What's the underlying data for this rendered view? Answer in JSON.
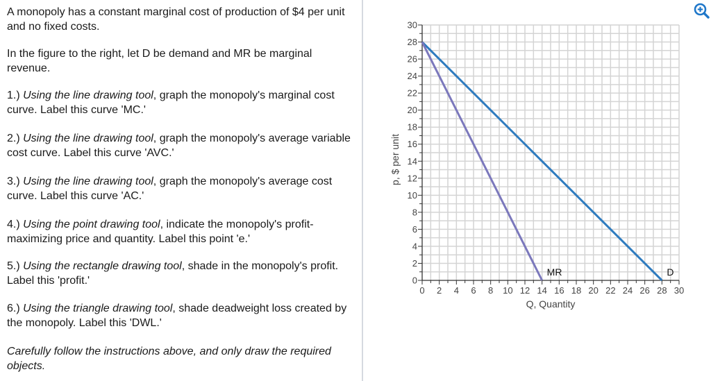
{
  "instructions": {
    "intro": "A monopoly has a constant marginal cost of production of $4 per unit and no fixed costs.",
    "context": "In the figure to the right, let D be demand and MR be marginal revenue.",
    "steps": [
      {
        "num": "1.) ",
        "tool": "Using the line drawing tool",
        "rest": ", graph the monopoly's marginal cost curve.  Label this curve 'MC.'"
      },
      {
        "num": "2.) ",
        "tool": "Using the line drawing tool",
        "rest": ", graph the monopoly's average variable cost curve.  Label this curve 'AVC.'"
      },
      {
        "num": "3.) ",
        "tool": "Using the line drawing tool",
        "rest": ", graph the monopoly's average cost curve.  Label this curve 'AC.'"
      },
      {
        "num": "4.) ",
        "tool": "Using the point drawing tool",
        "rest": ", indicate the monopoly's profit-maximizing price and quantity.  Label this point 'e.'"
      },
      {
        "num": "5.) ",
        "tool": "Using the rectangle drawing tool",
        "rest": ", shade in the monopoly's profit.  Label this 'profit.'"
      },
      {
        "num": "6.) ",
        "tool": "Using the triangle drawing tool",
        "rest": ", shade deadweight loss created by the monopoly.  Label this 'DWL.'"
      }
    ],
    "footer": "Carefully follow the instructions above, and only draw the required objects."
  },
  "toolbar": {
    "zoom_icon": "zoom-in-icon",
    "accent_color": "#1f77c9"
  },
  "chart_data": {
    "type": "line",
    "title": "",
    "xlabel": "Q, Quantity",
    "ylabel": "p, $ per unit",
    "xlim": [
      0,
      30
    ],
    "ylim": [
      0,
      30
    ],
    "x_ticks": [
      "0",
      "2",
      "4",
      "6",
      "8",
      "10",
      "12",
      "14",
      "16",
      "18",
      "20",
      "22",
      "24",
      "26",
      "28",
      "30"
    ],
    "y_ticks": [
      "0",
      "2",
      "4",
      "6",
      "8",
      "10",
      "12",
      "14",
      "16",
      "18",
      "20",
      "22",
      "24",
      "26",
      "28",
      "30"
    ],
    "grid": true,
    "grid_step": 1,
    "legend_position": "none",
    "series": [
      {
        "name": "D",
        "label": "D",
        "color": "#2e7bbf",
        "points": [
          [
            0,
            28
          ],
          [
            28,
            0
          ]
        ]
      },
      {
        "name": "MR",
        "label": "MR",
        "color": "#7b78bc",
        "points": [
          [
            0,
            28
          ],
          [
            14,
            0
          ]
        ]
      }
    ]
  }
}
